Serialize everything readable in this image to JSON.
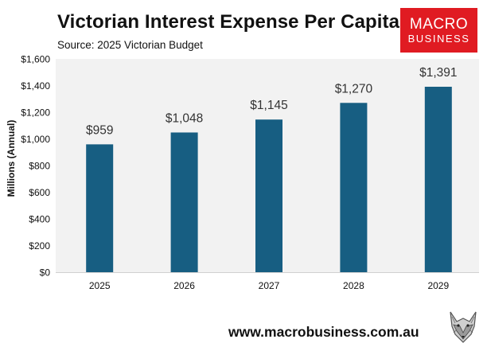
{
  "header": {
    "title": "Victorian Interest Expense Per Capita",
    "subtitle": "Source: 2025 Victorian Budget"
  },
  "logo": {
    "line1": "MACRO",
    "line2": "BUSINESS",
    "background": "#e01b22"
  },
  "footer": {
    "url": "www.macrobusiness.com.au",
    "mascot_icon": "wolf-head-icon"
  },
  "colors": {
    "bar": "#175e82",
    "plot_background": "#f2f2f2",
    "text": "#111111"
  },
  "chart_data": {
    "type": "bar",
    "title": "Victorian Interest Expense Per Capita",
    "subtitle": "Source: 2025 Victorian Budget",
    "xlabel": "",
    "ylabel": "Millions (Annual)",
    "categories": [
      "2025",
      "2026",
      "2027",
      "2028",
      "2029"
    ],
    "values": [
      959,
      1048,
      1145,
      1270,
      1391
    ],
    "data_labels": [
      "$959",
      "$1,048",
      "$1,145",
      "$1,270",
      "$1,391"
    ],
    "ylim": [
      0,
      1600
    ],
    "yticks": [
      0,
      200,
      400,
      600,
      800,
      1000,
      1200,
      1400,
      1600
    ],
    "ytick_labels": [
      "$0",
      "$200",
      "$400",
      "$600",
      "$800",
      "$1,000",
      "$1,200",
      "$1,400",
      "$1,600"
    ],
    "grid": false,
    "legend": "none"
  }
}
